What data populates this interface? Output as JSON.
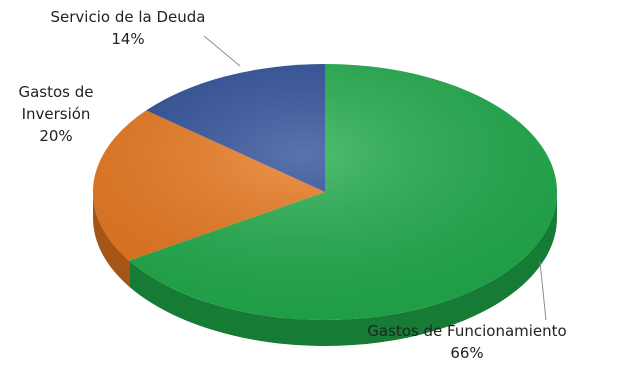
{
  "chart_data": {
    "type": "pie",
    "title": "",
    "slices": [
      {
        "label": "Gastos de Funcionamiento",
        "value": 66,
        "value_label": "66%",
        "color": "#1fab4a"
      },
      {
        "label": "Gastos de Inversión",
        "value": 20,
        "value_label": "20%",
        "color": "#e8761c"
      },
      {
        "label": "Servicio de la Deuda",
        "value": 14,
        "value_label": "14%",
        "color": "#2b4c97"
      }
    ],
    "label_lines": {
      "Gastos de Inversión": [
        "Gastos de",
        "Inversión"
      ]
    },
    "style": "3d",
    "legend": "none"
  }
}
